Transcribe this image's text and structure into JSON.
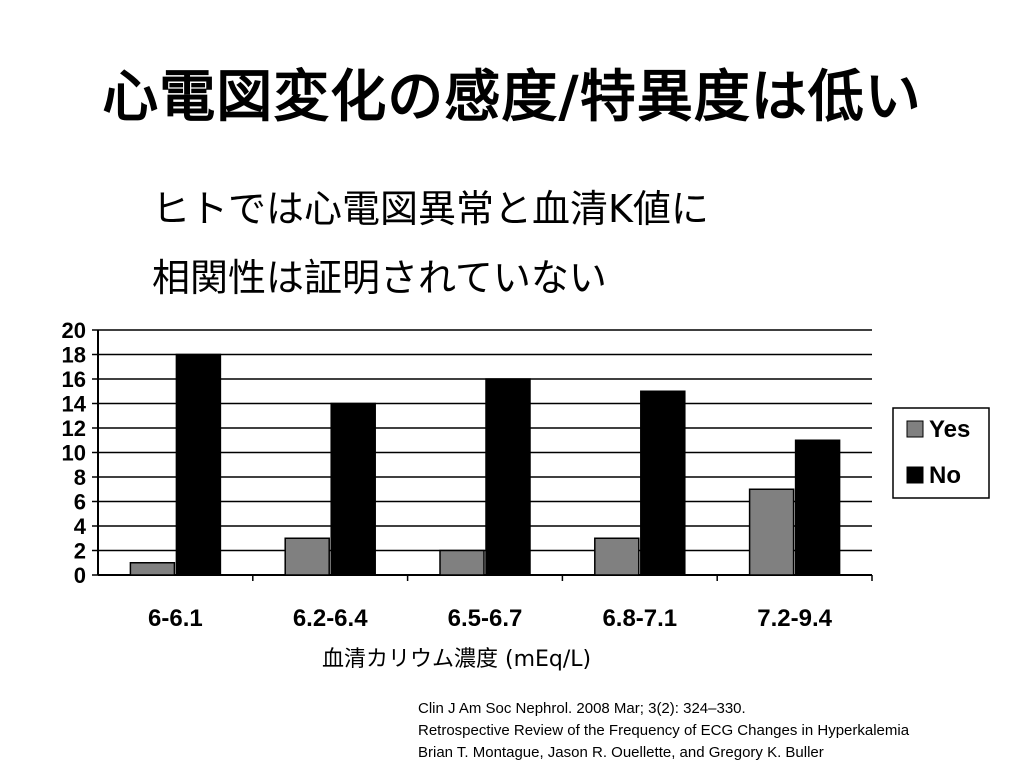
{
  "slide": {
    "title": "心電図変化の感度/特異度は低い",
    "subtitle_lines": [
      "ヒトでは心電図異常と血清K値に",
      "相関性は証明されていない"
    ],
    "citation_lines": [
      "Clin J Am Soc Nephrol. 2008 Mar; 3(2): 324–330.",
      "Retrospective Review of the Frequency of ECG Changes in Hyperkalemia",
      "Brian T. Montague, Jason R. Ouellette, and Gregory K. Buller"
    ]
  },
  "chart_data": {
    "type": "bar",
    "categories": [
      "6-6.1",
      "6.2-6.4",
      "6.5-6.7",
      "6.8-7.1",
      "7.2-9.4"
    ],
    "series": [
      {
        "name": "Yes",
        "values": [
          1,
          3,
          2,
          3,
          7
        ],
        "color": "#808080"
      },
      {
        "name": "No",
        "values": [
          18,
          14,
          16,
          15,
          11
        ],
        "color": "#000000"
      }
    ],
    "xlabel": "血清カリウム濃度 (mEq/L)",
    "ylabel": "",
    "ylim": [
      0,
      20
    ],
    "yticks": [
      0,
      2,
      4,
      6,
      8,
      10,
      12,
      14,
      16,
      18,
      20
    ],
    "grid": true,
    "legend": "right"
  }
}
